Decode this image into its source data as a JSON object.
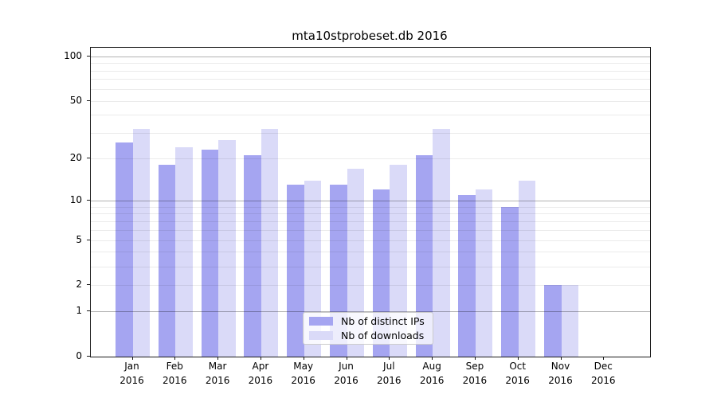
{
  "title": "mta10stprobeset.db 2016",
  "colors": {
    "ips_bar": "#a5a5f1",
    "downloads_bar": "#dadaf8",
    "grid_major": "rgba(0,0,0,0.30)",
    "grid_minor": "rgba(0,0,0,0.08)"
  },
  "legend": {
    "items": [
      {
        "label": "Nb of distinct IPs",
        "color_key": "ips_bar"
      },
      {
        "label": "Nb of downloads",
        "color_key": "downloads_bar"
      }
    ]
  },
  "y_axis": {
    "tick_values": [
      100,
      50,
      20,
      10,
      5,
      2,
      1,
      0
    ],
    "tick_labels": [
      "100",
      "50",
      "20",
      "10",
      "5",
      "2",
      "1",
      "0"
    ],
    "major_grid_values": [
      1,
      10,
      100
    ],
    "minor_grid_values": [
      2,
      3,
      4,
      5,
      6,
      7,
      8,
      9,
      20,
      30,
      40,
      50,
      60,
      70,
      80,
      90
    ],
    "scale": "log1p",
    "range_top": 114
  },
  "x_axis": {
    "year": "2016",
    "months": [
      "Jan",
      "Feb",
      "Mar",
      "Apr",
      "May",
      "Jun",
      "Jul",
      "Aug",
      "Sep",
      "Oct",
      "Nov",
      "Dec"
    ]
  },
  "chart_data": {
    "type": "bar",
    "title": "mta10stprobeset.db 2016",
    "categories": [
      "Jan 2016",
      "Feb 2016",
      "Mar 2016",
      "Apr 2016",
      "May 2016",
      "Jun 2016",
      "Jul 2016",
      "Aug 2016",
      "Sep 2016",
      "Oct 2016",
      "Nov 2016",
      "Dec 2016"
    ],
    "series": [
      {
        "name": "Nb of distinct IPs",
        "color": "#a5a5f1",
        "values": [
          26,
          18,
          23,
          21,
          13,
          13,
          12,
          21,
          11,
          9,
          2,
          0
        ]
      },
      {
        "name": "Nb of downloads",
        "color": "#dadaf8",
        "values": [
          32,
          24,
          27,
          32,
          14,
          17,
          18,
          32,
          12,
          14,
          2,
          0
        ]
      }
    ],
    "xlabel": "",
    "ylabel": "",
    "yscale": "log1p",
    "ylim": [
      0,
      114
    ],
    "y_ticks": [
      0,
      1,
      2,
      5,
      10,
      20,
      50,
      100
    ],
    "grid": true,
    "legend_position": "lower center"
  }
}
